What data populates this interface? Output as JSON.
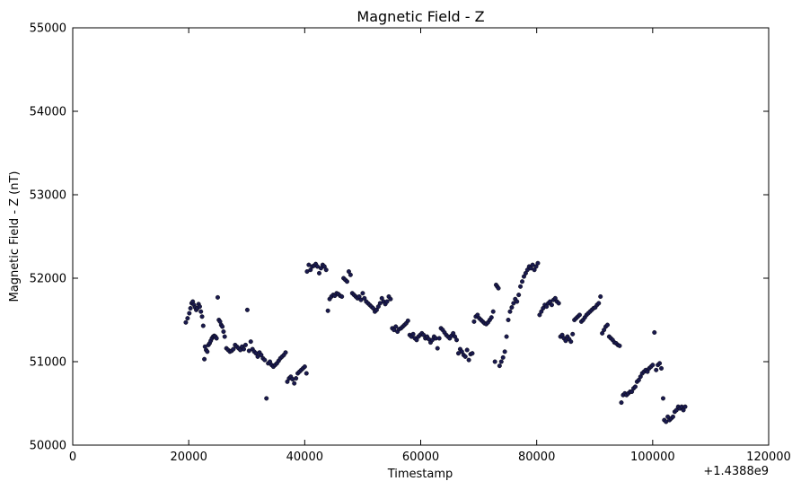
{
  "chart_data": {
    "type": "scatter",
    "title": "Magnetic Field - Z",
    "xlabel": "Timestamp",
    "ylabel": "Magnetic Field - Z (nT)",
    "x_offset_label": "+1.4388e9",
    "xlim": [
      0,
      120000
    ],
    "ylim": [
      50000,
      55000
    ],
    "xticks": [
      0,
      20000,
      40000,
      60000,
      80000,
      100000,
      120000
    ],
    "xtick_labels": [
      "0",
      "20000",
      "40000",
      "60000",
      "80000",
      "100000",
      "120000"
    ],
    "yticks": [
      50000,
      51000,
      52000,
      53000,
      54000,
      55000
    ],
    "ytick_labels": [
      "50000",
      "51000",
      "52000",
      "53000",
      "54000",
      "55000"
    ],
    "grid": false,
    "marker_color": "#1a1a4e",
    "series": [
      {
        "points": [
          [
            19500,
            51470
          ],
          [
            19800,
            51520
          ],
          [
            20100,
            51580
          ],
          [
            20300,
            51640
          ],
          [
            20500,
            51700
          ],
          [
            20700,
            51720
          ],
          [
            20900,
            51680
          ],
          [
            21100,
            51650
          ],
          [
            21300,
            51620
          ],
          [
            21500,
            51640
          ],
          [
            21700,
            51690
          ],
          [
            21900,
            51660
          ],
          [
            22100,
            51600
          ],
          [
            22300,
            51540
          ],
          [
            22500,
            51430
          ],
          [
            22700,
            51030
          ],
          [
            22800,
            51180
          ],
          [
            23000,
            51140
          ],
          [
            23200,
            51120
          ],
          [
            23400,
            51200
          ],
          [
            23600,
            51220
          ],
          [
            23800,
            51250
          ],
          [
            24000,
            51280
          ],
          [
            24200,
            51300
          ],
          [
            24400,
            51310
          ],
          [
            24600,
            51300
          ],
          [
            24800,
            51280
          ],
          [
            25000,
            51770
          ],
          [
            25200,
            51500
          ],
          [
            25400,
            51480
          ],
          [
            25600,
            51440
          ],
          [
            25800,
            51420
          ],
          [
            26000,
            51360
          ],
          [
            26200,
            51300
          ],
          [
            26500,
            51160
          ],
          [
            26800,
            51140
          ],
          [
            27100,
            51120
          ],
          [
            27400,
            51130
          ],
          [
            27700,
            51150
          ],
          [
            28000,
            51200
          ],
          [
            28300,
            51180
          ],
          [
            28600,
            51160
          ],
          [
            28900,
            51140
          ],
          [
            29200,
            51180
          ],
          [
            29500,
            51150
          ],
          [
            29800,
            51200
          ],
          [
            30100,
            51620
          ],
          [
            30400,
            51130
          ],
          [
            30700,
            51240
          ],
          [
            31000,
            51150
          ],
          [
            31300,
            51120
          ],
          [
            31600,
            51100
          ],
          [
            31900,
            51060
          ],
          [
            32200,
            51110
          ],
          [
            32500,
            51080
          ],
          [
            32800,
            51040
          ],
          [
            33100,
            51020
          ],
          [
            33400,
            50560
          ],
          [
            33700,
            50980
          ],
          [
            34000,
            51000
          ],
          [
            34300,
            50960
          ],
          [
            34600,
            50940
          ],
          [
            34900,
            50960
          ],
          [
            35200,
            50980
          ],
          [
            35500,
            51010
          ],
          [
            35800,
            51040
          ],
          [
            36100,
            51060
          ],
          [
            36400,
            51080
          ],
          [
            36700,
            51110
          ],
          [
            37000,
            50760
          ],
          [
            37300,
            50800
          ],
          [
            37600,
            50820
          ],
          [
            37900,
            50790
          ],
          [
            38200,
            50740
          ],
          [
            38500,
            50800
          ],
          [
            38800,
            50860
          ],
          [
            39100,
            50880
          ],
          [
            39400,
            50900
          ],
          [
            39700,
            50920
          ],
          [
            40000,
            50940
          ],
          [
            40300,
            50860
          ],
          [
            40400,
            52080
          ],
          [
            40700,
            52160
          ],
          [
            41000,
            52100
          ],
          [
            41300,
            52140
          ],
          [
            41600,
            52150
          ],
          [
            41900,
            52170
          ],
          [
            42200,
            52140
          ],
          [
            42500,
            52060
          ],
          [
            42800,
            52120
          ],
          [
            43100,
            52160
          ],
          [
            43400,
            52140
          ],
          [
            43700,
            52100
          ],
          [
            44000,
            51610
          ],
          [
            44300,
            51750
          ],
          [
            44600,
            51780
          ],
          [
            44900,
            51800
          ],
          [
            45200,
            51790
          ],
          [
            45500,
            51820
          ],
          [
            45800,
            51810
          ],
          [
            46100,
            51790
          ],
          [
            46400,
            51780
          ],
          [
            46700,
            52000
          ],
          [
            47000,
            51980
          ],
          [
            47300,
            51960
          ],
          [
            47600,
            52080
          ],
          [
            47900,
            52040
          ],
          [
            48200,
            51820
          ],
          [
            48500,
            51800
          ],
          [
            48800,
            51780
          ],
          [
            49100,
            51760
          ],
          [
            49400,
            51780
          ],
          [
            49700,
            51740
          ],
          [
            50000,
            51820
          ],
          [
            50300,
            51760
          ],
          [
            50600,
            51720
          ],
          [
            50900,
            51700
          ],
          [
            51200,
            51680
          ],
          [
            51500,
            51660
          ],
          [
            51800,
            51640
          ],
          [
            52100,
            51600
          ],
          [
            52400,
            51620
          ],
          [
            52700,
            51660
          ],
          [
            53000,
            51700
          ],
          [
            53300,
            51760
          ],
          [
            53600,
            51720
          ],
          [
            53900,
            51690
          ],
          [
            54200,
            51720
          ],
          [
            54500,
            51780
          ],
          [
            54800,
            51750
          ],
          [
            55100,
            51400
          ],
          [
            55400,
            51380
          ],
          [
            55700,
            51420
          ],
          [
            56000,
            51360
          ],
          [
            56300,
            51390
          ],
          [
            56600,
            51400
          ],
          [
            56900,
            51420
          ],
          [
            57200,
            51440
          ],
          [
            57500,
            51460
          ],
          [
            57800,
            51490
          ],
          [
            58100,
            51320
          ],
          [
            58400,
            51300
          ],
          [
            58700,
            51330
          ],
          [
            59000,
            51280
          ],
          [
            59300,
            51260
          ],
          [
            59600,
            51300
          ],
          [
            59900,
            51320
          ],
          [
            60200,
            51340
          ],
          [
            60500,
            51320
          ],
          [
            60800,
            51280
          ],
          [
            61100,
            51300
          ],
          [
            61400,
            51270
          ],
          [
            61700,
            51230
          ],
          [
            62000,
            51260
          ],
          [
            62300,
            51300
          ],
          [
            62600,
            51280
          ],
          [
            62900,
            51160
          ],
          [
            63200,
            51280
          ],
          [
            63500,
            51400
          ],
          [
            63800,
            51380
          ],
          [
            64100,
            51350
          ],
          [
            64400,
            51320
          ],
          [
            64700,
            51300
          ],
          [
            65000,
            51280
          ],
          [
            65300,
            51310
          ],
          [
            65600,
            51340
          ],
          [
            65900,
            51300
          ],
          [
            66200,
            51260
          ],
          [
            66500,
            51100
          ],
          [
            66800,
            51150
          ],
          [
            67100,
            51120
          ],
          [
            67400,
            51080
          ],
          [
            67700,
            51060
          ],
          [
            68000,
            51140
          ],
          [
            68300,
            51020
          ],
          [
            68600,
            51090
          ],
          [
            68900,
            51100
          ],
          [
            69200,
            51480
          ],
          [
            69500,
            51540
          ],
          [
            69800,
            51560
          ],
          [
            70100,
            51520
          ],
          [
            70400,
            51500
          ],
          [
            70700,
            51480
          ],
          [
            71000,
            51460
          ],
          [
            71300,
            51450
          ],
          [
            71600,
            51470
          ],
          [
            71900,
            51500
          ],
          [
            72200,
            51530
          ],
          [
            72500,
            51600
          ],
          [
            72800,
            51000
          ],
          [
            73000,
            51920
          ],
          [
            73200,
            51900
          ],
          [
            73400,
            51880
          ],
          [
            73600,
            50950
          ],
          [
            73900,
            51000
          ],
          [
            74200,
            51050
          ],
          [
            74500,
            51120
          ],
          [
            74800,
            51300
          ],
          [
            75100,
            51500
          ],
          [
            75400,
            51600
          ],
          [
            75700,
            51650
          ],
          [
            76000,
            51700
          ],
          [
            76300,
            51750
          ],
          [
            76600,
            51720
          ],
          [
            76900,
            51800
          ],
          [
            77200,
            51900
          ],
          [
            77500,
            51960
          ],
          [
            77800,
            52020
          ],
          [
            78100,
            52060
          ],
          [
            78400,
            52100
          ],
          [
            78700,
            52140
          ],
          [
            79000,
            52120
          ],
          [
            79300,
            52160
          ],
          [
            79600,
            52100
          ],
          [
            79900,
            52140
          ],
          [
            80200,
            52180
          ],
          [
            80500,
            51560
          ],
          [
            80800,
            51600
          ],
          [
            81100,
            51640
          ],
          [
            81400,
            51680
          ],
          [
            81700,
            51660
          ],
          [
            82000,
            51700
          ],
          [
            82300,
            51720
          ],
          [
            82600,
            51680
          ],
          [
            82900,
            51740
          ],
          [
            83200,
            51760
          ],
          [
            83500,
            51720
          ],
          [
            83800,
            51700
          ],
          [
            84100,
            51300
          ],
          [
            84400,
            51320
          ],
          [
            84700,
            51280
          ],
          [
            85000,
            51250
          ],
          [
            85300,
            51300
          ],
          [
            85600,
            51270
          ],
          [
            85900,
            51240
          ],
          [
            86200,
            51330
          ],
          [
            86500,
            51500
          ],
          [
            86800,
            51520
          ],
          [
            87100,
            51540
          ],
          [
            87400,
            51560
          ],
          [
            87700,
            51480
          ],
          [
            88000,
            51500
          ],
          [
            88300,
            51530
          ],
          [
            88600,
            51560
          ],
          [
            88900,
            51580
          ],
          [
            89200,
            51600
          ],
          [
            89500,
            51620
          ],
          [
            89800,
            51640
          ],
          [
            90100,
            51650
          ],
          [
            90400,
            51680
          ],
          [
            90700,
            51700
          ],
          [
            91000,
            51780
          ],
          [
            91300,
            51340
          ],
          [
            91600,
            51380
          ],
          [
            91900,
            51420
          ],
          [
            92200,
            51440
          ],
          [
            92500,
            51300
          ],
          [
            92800,
            51280
          ],
          [
            93100,
            51260
          ],
          [
            93400,
            51230
          ],
          [
            93700,
            51220
          ],
          [
            94000,
            51200
          ],
          [
            94300,
            51190
          ],
          [
            94600,
            50510
          ],
          [
            94900,
            50600
          ],
          [
            95200,
            50620
          ],
          [
            95500,
            50600
          ],
          [
            95800,
            50620
          ],
          [
            96100,
            50640
          ],
          [
            96400,
            50640
          ],
          [
            96700,
            50680
          ],
          [
            97000,
            50700
          ],
          [
            97300,
            50760
          ],
          [
            97600,
            50780
          ],
          [
            97900,
            50820
          ],
          [
            98200,
            50860
          ],
          [
            98500,
            50880
          ],
          [
            98800,
            50900
          ],
          [
            99100,
            50880
          ],
          [
            99400,
            50920
          ],
          [
            99700,
            50940
          ],
          [
            100000,
            50960
          ],
          [
            100300,
            51350
          ],
          [
            100600,
            50900
          ],
          [
            100900,
            50960
          ],
          [
            101200,
            50980
          ],
          [
            101500,
            50920
          ],
          [
            101800,
            50560
          ],
          [
            102000,
            50300
          ],
          [
            102300,
            50280
          ],
          [
            102600,
            50340
          ],
          [
            102900,
            50300
          ],
          [
            103200,
            50320
          ],
          [
            103500,
            50340
          ],
          [
            103800,
            50400
          ],
          [
            104100,
            50420
          ],
          [
            104400,
            50460
          ],
          [
            104700,
            50440
          ],
          [
            105000,
            50460
          ],
          [
            105300,
            50420
          ],
          [
            105600,
            50460
          ]
        ]
      }
    ]
  }
}
